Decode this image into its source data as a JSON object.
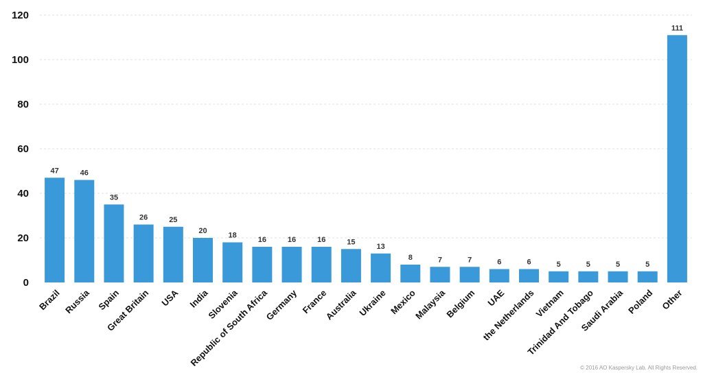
{
  "chart_data": {
    "type": "bar",
    "categories": [
      "Brazil",
      "Russia",
      "Spain",
      "Great Britain",
      "USA",
      "India",
      "Slovenia",
      "Republic of South Africa",
      "Germany",
      "France",
      "Australia",
      "Ukraine",
      "Mexico",
      "Malaysia",
      "Belgium",
      "UAE",
      "the Netherlands",
      "Vietnam",
      "Trinidad And Tobago",
      "Saudi Arabia",
      "Poland",
      "Other"
    ],
    "values": [
      47,
      46,
      35,
      26,
      25,
      20,
      18,
      16,
      16,
      16,
      15,
      13,
      8,
      7,
      7,
      6,
      6,
      5,
      5,
      5,
      5,
      111
    ],
    "title": "",
    "xlabel": "",
    "ylabel": "",
    "ylim": [
      0,
      120
    ],
    "yticks": [
      0,
      20,
      40,
      60,
      80,
      100,
      120
    ],
    "grid": true,
    "bar_color": "#3a9ad9",
    "data_labels": true
  },
  "footer": {
    "copyright": "© 2016 AO Kaspersky Lab. All Rights Reserved."
  }
}
